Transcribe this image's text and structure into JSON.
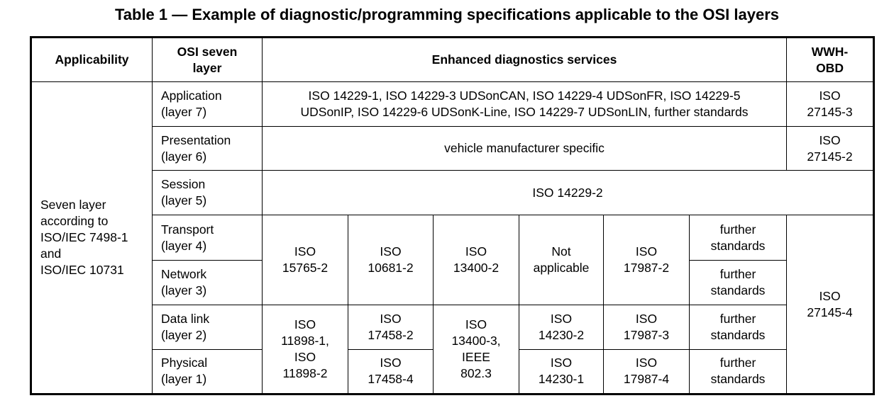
{
  "title": "Table 1 — Example of diagnostic/programming specifications applicable to the OSI layers",
  "headers": {
    "applicability": "Applicability",
    "osi": "OSI seven\nlayer",
    "enhanced": "Enhanced diagnostics services",
    "wwh": "WWH-\nOBD"
  },
  "applicability_text": "Seven layer\naccording to\nISO/IEC 7498-1\nand\nISO/IEC 10731",
  "layers": {
    "application": "Application\n(layer 7)",
    "presentation": "Presentation\n(layer 6)",
    "session": "Session\n(layer 5)",
    "transport": "Transport\n(layer 4)",
    "network": "Network\n(layer 3)",
    "datalink": "Data link\n(layer 2)",
    "physical": "Physical\n(layer 1)"
  },
  "application_services": "ISO 14229-1, ISO 14229-3 UDSonCAN, ISO 14229-4 UDSonFR, ISO 14229-5\nUDSonIP, ISO 14229-6 UDSonK-Line, ISO 14229-7 UDSonLIN, further standards",
  "presentation_services": "vehicle manufacturer specific",
  "session_services": "ISO 14229-2",
  "wwh": {
    "application": "ISO\n27145-3",
    "presentation": "ISO\n27145-2",
    "lower": "ISO\n27145-4"
  },
  "transport_network": {
    "c1": "ISO\n15765-2",
    "c2": "ISO\n10681-2",
    "c3": "ISO\n13400-2",
    "c4": "Not\napplicable",
    "c5": "ISO\n17987-2",
    "c6_transport": "further\nstandards",
    "c6_network": "further\nstandards"
  },
  "datalink_physical": {
    "c1": "ISO\n11898-1,\nISO\n11898-2",
    "c2_datalink": "ISO\n17458-2",
    "c2_physical": "ISO\n17458-4",
    "c3": "ISO\n13400-3,\nIEEE\n802.3",
    "c4_datalink": "ISO\n14230-2",
    "c4_physical": "ISO\n14230-1",
    "c5_datalink": "ISO\n17987-3",
    "c5_physical": "ISO\n17987-4",
    "c6_datalink": "further\nstandards",
    "c6_physical": "further\nstandards"
  }
}
